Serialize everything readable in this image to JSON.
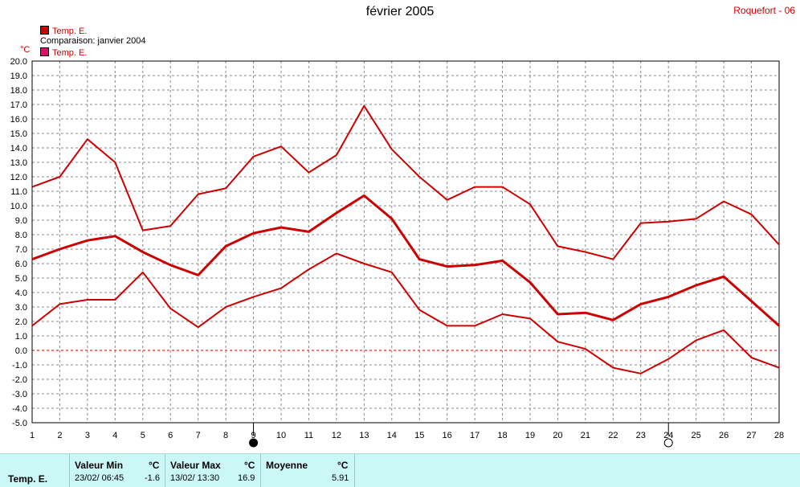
{
  "header": {
    "title": "février 2005",
    "station": "Roquefort - 06"
  },
  "legend": {
    "series_label": "Temp. E.",
    "comparison_label": "Comparaison: janvier 2004",
    "comparison_series_label": "Temp. E.",
    "series_color": "#cc0000",
    "comparison_color": "#e0106a"
  },
  "chart_data": {
    "type": "line",
    "ylabel": "°C",
    "ylim": [
      -5.0,
      20.0
    ],
    "y_ticks": [
      "-5.0",
      "-4.0",
      "-3.0",
      "-2.0",
      "-1.0",
      "0.0",
      "1.0",
      "2.0",
      "3.0",
      "4.0",
      "5.0",
      "6.0",
      "7.0",
      "8.0",
      "9.0",
      "10.0",
      "11.0",
      "12.0",
      "13.0",
      "14.0",
      "15.0",
      "16.0",
      "17.0",
      "18.0",
      "19.0",
      "20.0"
    ],
    "x": [
      1,
      2,
      3,
      4,
      5,
      6,
      7,
      8,
      9,
      10,
      11,
      12,
      13,
      14,
      15,
      16,
      17,
      18,
      19,
      20,
      21,
      22,
      23,
      24,
      25,
      26,
      27,
      28
    ],
    "grid": true,
    "series": [
      {
        "role": "max",
        "values": [
          11.3,
          12.0,
          14.6,
          13.0,
          8.3,
          8.6,
          10.8,
          11.2,
          13.4,
          14.1,
          12.3,
          13.5,
          16.9,
          13.9,
          12.0,
          10.4,
          11.3,
          11.3,
          10.1,
          7.2,
          6.8,
          6.3,
          8.8,
          8.9,
          9.1,
          10.3,
          9.4,
          7.3
        ]
      },
      {
        "role": "mean",
        "values": [
          6.3,
          7.0,
          7.6,
          7.9,
          6.8,
          5.9,
          5.2,
          7.2,
          8.1,
          8.5,
          8.2,
          9.5,
          10.7,
          9.1,
          6.3,
          5.8,
          5.9,
          6.2,
          4.7,
          2.5,
          2.6,
          2.1,
          3.2,
          3.7,
          4.5,
          5.1,
          3.4,
          1.7
        ]
      },
      {
        "role": "min",
        "values": [
          1.7,
          3.2,
          3.5,
          3.5,
          5.4,
          2.9,
          1.6,
          3.0,
          3.7,
          4.3,
          5.6,
          6.7,
          6.0,
          5.4,
          2.8,
          1.7,
          1.7,
          2.5,
          2.2,
          0.6,
          0.1,
          -1.2,
          -1.6,
          -0.6,
          0.7,
          1.4,
          -0.5,
          -1.2
        ]
      }
    ],
    "markers": [
      {
        "day": 9,
        "symbol": "filled-circle"
      },
      {
        "day": 24,
        "symbol": "empty-circle"
      }
    ]
  },
  "stats": {
    "series_label": "Temp. E.",
    "min_header": "Valeur Min",
    "max_header": "Valeur Max",
    "mean_header": "Moyenne",
    "unit": "°C",
    "min_when": "23/02/  06:45",
    "min_value": "-1.6",
    "max_when": "13/02/  13:30",
    "max_value": "16.9",
    "mean_value": "5.91"
  }
}
